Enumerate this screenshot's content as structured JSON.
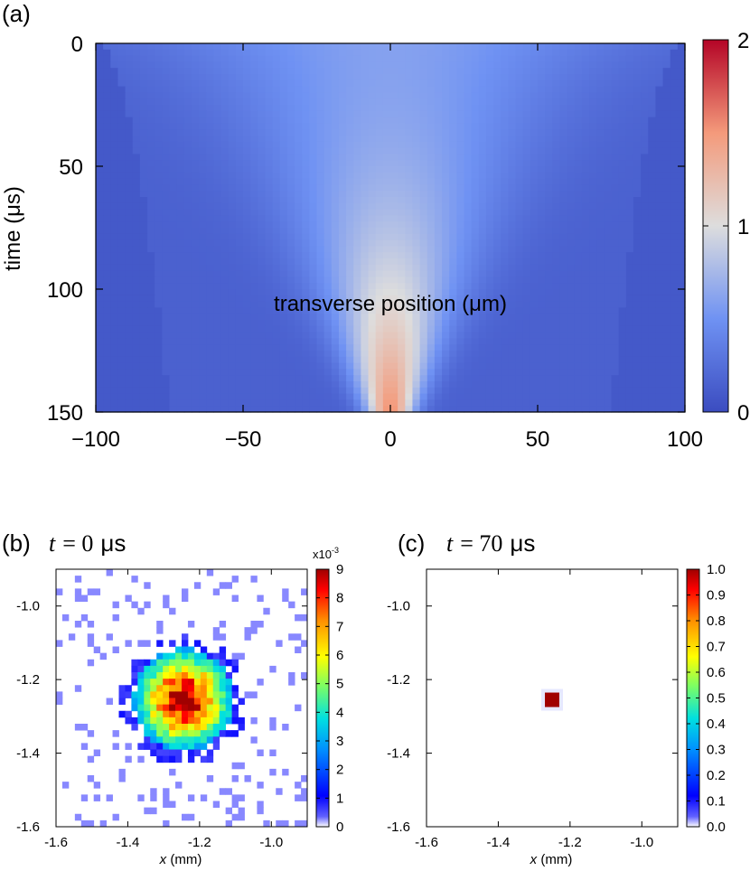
{
  "chart_data": [
    {
      "type": "heatmap",
      "panel_label": "(a)",
      "xlabel": "transverse position (μm)",
      "ylabel": "time (μs)",
      "xlim": [
        -100,
        100
      ],
      "ylim": [
        0,
        150
      ],
      "xticks": [
        -100,
        -50,
        0,
        50,
        100
      ],
      "xtick_labels": [
        "−100",
        "−50",
        "0",
        "50",
        "100"
      ],
      "yticks": [
        0,
        50,
        100,
        150
      ],
      "ytick_labels": [
        "0",
        "50",
        "100",
        "150"
      ],
      "colorbar": {
        "range": [
          0,
          2
        ],
        "ticks": [
          0,
          1,
          2
        ],
        "tick_labels": [
          "0",
          "1",
          "2"
        ],
        "colormap": [
          "#3b4cc0",
          "#dddddd",
          "#b40426"
        ]
      },
      "model": {
        "background": 0.15,
        "center_start": 0.6,
        "center_end": 1.55,
        "width_start": 100,
        "width_end": 10,
        "outer_edge_start": 100,
        "outer_edge_end": 75
      }
    },
    {
      "type": "heatmap",
      "panel_label": "(b)",
      "title": "t = 0 μs",
      "xlabel": "x (mm)",
      "xlim": [
        -1.6,
        -0.9
      ],
      "ylim": [
        -1.6,
        -0.9
      ],
      "xticks": [
        -1.6,
        -1.4,
        -1.2,
        -1.0
      ],
      "xtick_labels": [
        "-1.6",
        "-1.4",
        "-1.2",
        "-1.0"
      ],
      "yticks": [
        -1.0,
        -1.2,
        -1.4,
        -1.6
      ],
      "ytick_labels": [
        "-1.0",
        "-1.2",
        "-1.4",
        "-1.6"
      ],
      "center": [
        -1.245,
        -1.255
      ],
      "sigma": 0.11,
      "peak": 0.009,
      "colorbar": {
        "range": [
          0,
          9
        ],
        "ticks": [
          0,
          1,
          2,
          3,
          4,
          5,
          6,
          7,
          8,
          9
        ],
        "tick_labels": [
          "0",
          "1",
          "2",
          "3",
          "4",
          "5",
          "6",
          "7",
          "8",
          "9"
        ],
        "multiplier": "x10-3"
      }
    },
    {
      "type": "heatmap",
      "panel_label": "(c)",
      "title": "t = 70 μs",
      "xlabel": "x (mm)",
      "xlim": [
        -1.6,
        -0.9
      ],
      "ylim": [
        -1.6,
        -0.9
      ],
      "xticks": [
        -1.6,
        -1.4,
        -1.2,
        -1.0
      ],
      "xtick_labels": [
        "-1.6",
        "-1.4",
        "-1.2",
        "-1.0"
      ],
      "yticks": [
        -1.0,
        -1.2,
        -1.4,
        -1.6
      ],
      "ytick_labels": [
        "-1.0",
        "-1.2",
        "-1.4",
        "-1.6"
      ],
      "center": [
        -1.25,
        -1.255
      ],
      "peak": 1.0,
      "colorbar": {
        "range": [
          0,
          1
        ],
        "ticks": [
          0,
          0.1,
          0.2,
          0.3,
          0.4,
          0.5,
          0.6,
          0.7,
          0.8,
          0.9,
          1.0
        ],
        "tick_labels": [
          "0.0",
          "0.1",
          "0.2",
          "0.3",
          "0.4",
          "0.5",
          "0.6",
          "0.7",
          "0.8",
          "0.9",
          "1.0"
        ]
      }
    }
  ],
  "labels": {
    "a_panel": "(a)",
    "b_panel": "(b)",
    "b_title_var": "t",
    "b_title_eq": "= 0",
    "b_title_unit": "μs",
    "c_panel": "(c)",
    "c_title_var": "t",
    "c_title_eq": "= 70",
    "c_title_unit": "μs",
    "b_mult_base": "x10",
    "b_mult_exp": "-3",
    "b_xlabel_var": "x",
    "b_xlabel_unit": " (mm)",
    "c_xlabel_var": "x",
    "c_xlabel_unit": " (mm)"
  }
}
